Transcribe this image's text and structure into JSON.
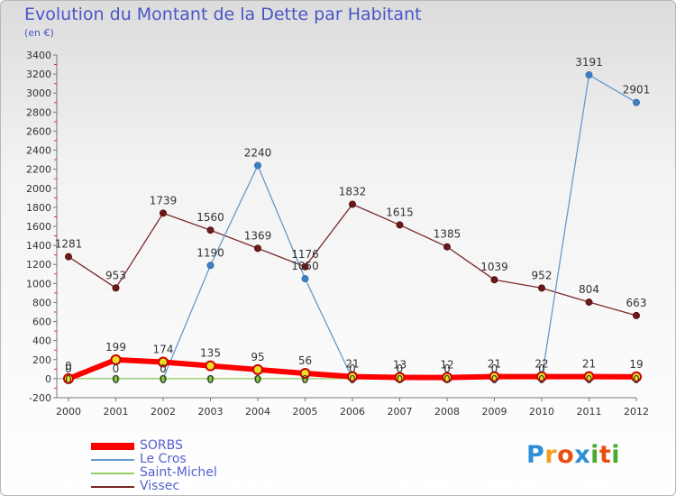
{
  "chart_data": {
    "type": "line",
    "title": "Evolution du Montant de la Dette par Habitant",
    "subtitle": "(en €)",
    "x": [
      "2000",
      "2001",
      "2002",
      "2003",
      "2004",
      "2005",
      "2006",
      "2007",
      "2008",
      "2009",
      "2010",
      "2011",
      "2012"
    ],
    "ylim": [
      -200,
      3400
    ],
    "yticks": [
      -200,
      0,
      200,
      400,
      600,
      800,
      1000,
      1200,
      1400,
      1600,
      1800,
      2000,
      2200,
      2400,
      2600,
      2800,
      3000,
      3200,
      3400
    ],
    "grid": false,
    "legend_position": "bottom-left",
    "series": [
      {
        "name": "SORBS",
        "color": "#ff0000",
        "values": [
          0,
          199,
          174,
          135,
          95,
          56,
          21,
          13,
          12,
          21,
          22,
          21,
          19
        ],
        "labels": [
          "0",
          "199",
          "174",
          "135",
          "95",
          "56",
          "21",
          "13",
          "12",
          "21",
          "22",
          "21",
          "19"
        ]
      },
      {
        "name": "Le Cros",
        "color": "#6699cc",
        "values": [
          0,
          0,
          0,
          1190,
          2240,
          1050,
          0,
          0,
          0,
          0,
          0,
          3191,
          2901
        ],
        "labels": [
          "0",
          "0",
          "0",
          "1190",
          "2240",
          "1050",
          "0",
          "0",
          "0",
          "0",
          "0",
          "3191",
          "2901"
        ]
      },
      {
        "name": "Saint-Michel",
        "color": "#99cc66",
        "values": [
          0,
          0,
          0,
          0,
          0,
          0,
          0,
          0,
          0,
          0,
          0,
          0,
          0
        ],
        "labels": [
          "0",
          "0",
          "0",
          "0",
          "0",
          "0",
          "0",
          "0",
          "0",
          "0",
          "0",
          "0",
          "0"
        ]
      },
      {
        "name": "Vissec",
        "color": "#7a2a2a",
        "values": [
          1281,
          953,
          1739,
          1560,
          1369,
          1176,
          1832,
          1615,
          1385,
          1039,
          952,
          804,
          663
        ],
        "labels": [
          "1281",
          "953",
          "1739",
          "1560",
          "1369",
          "1176",
          "1832",
          "1615",
          "1385",
          "1039",
          "952",
          "804",
          "663"
        ]
      }
    ]
  },
  "logo": {
    "text": "Proxiti",
    "letters": [
      "P",
      "r",
      "o",
      "x",
      "i",
      "t",
      "i"
    ],
    "colors": [
      "#2d8fd8",
      "#f0a020",
      "#e85010",
      "#2d8fd8",
      "#4aaa30",
      "#e85010",
      "#4aaa30"
    ]
  }
}
